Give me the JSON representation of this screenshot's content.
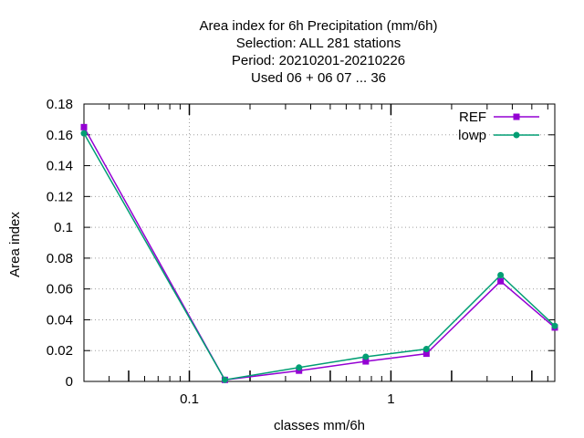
{
  "chart_data": {
    "type": "line",
    "title_lines": [
      "Area index  for 6h Precipitation (mm/6h)",
      "Selection: ALL    281 stations",
      "Period: 20210201-20210226",
      "Used  06  + 06 07 ... 36"
    ],
    "xlabel": "classes mm/6h",
    "ylabel": "Area index",
    "x_scale": "log",
    "xlim": [
      0.03,
      6.5
    ],
    "ylim": [
      0,
      0.18
    ],
    "x_ticks": [
      0.1,
      1
    ],
    "x_tick_labels": [
      "0.1",
      "1"
    ],
    "y_ticks": [
      0,
      0.02,
      0.04,
      0.06,
      0.08,
      0.1,
      0.12,
      0.14,
      0.16,
      0.18
    ],
    "y_tick_labels": [
      "0",
      "0.02",
      "0.04",
      "0.06",
      "0.08",
      "0.1",
      "0.12",
      "0.14",
      "0.16",
      "0.18"
    ],
    "grid": true,
    "legend_position": "top-right",
    "x": [
      0.03,
      0.15,
      0.35,
      0.75,
      1.5,
      3.5,
      6.5
    ],
    "series": [
      {
        "name": "REF",
        "color": "#9400d3",
        "values": [
          0.165,
          0.001,
          0.007,
          0.013,
          0.018,
          0.065,
          0.035
        ]
      },
      {
        "name": "lowp",
        "color": "#009e73",
        "values": [
          0.161,
          0.001,
          0.009,
          0.016,
          0.021,
          0.069,
          0.036
        ]
      }
    ]
  }
}
